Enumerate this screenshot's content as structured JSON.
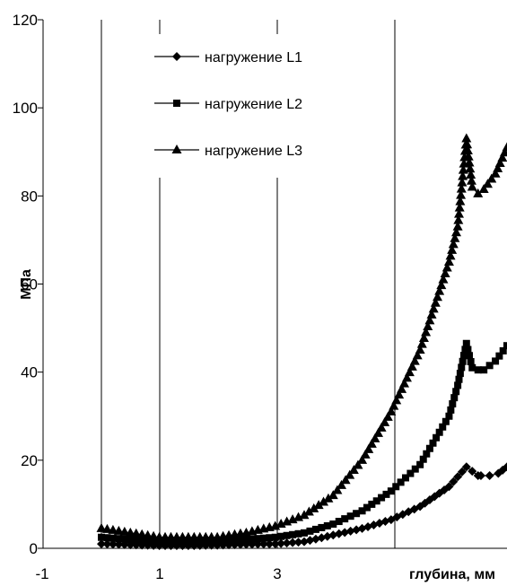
{
  "chart_data": {
    "type": "line",
    "xlabel": "глубина, мм",
    "ylabel": "МПа",
    "xlim": [
      -1,
      7
    ],
    "ylim": [
      0,
      120
    ],
    "x_ticks": [
      "-1",
      "1",
      "3"
    ],
    "y_ticks": [
      "0",
      "20",
      "40",
      "60",
      "80",
      "100",
      "120"
    ],
    "grid": "vertical",
    "legend_position": "top-left inside",
    "series": [
      {
        "name": "нагружение L1",
        "marker": "diamond",
        "x": [
          0.0,
          0.5,
          1.0,
          1.5,
          2.0,
          2.5,
          3.0,
          3.5,
          4.0,
          4.5,
          5.0,
          5.5,
          6.0,
          6.3,
          6.5,
          6.55,
          6.7,
          6.85,
          7.0
        ],
        "y": [
          1.0,
          0.8,
          0.6,
          0.6,
          0.7,
          0.9,
          1.0,
          1.5,
          3.0,
          4.5,
          6.5,
          9.5,
          14.0,
          18.5,
          16.5,
          16.5,
          16.5,
          17.0,
          18.5
        ]
      },
      {
        "name": "нагружение L2",
        "marker": "square",
        "x": [
          0.0,
          0.5,
          1.0,
          1.5,
          2.0,
          2.5,
          3.0,
          3.5,
          4.0,
          4.5,
          5.0,
          5.5,
          6.0,
          6.15,
          6.3,
          6.4,
          6.5,
          6.6,
          6.8,
          7.0
        ],
        "y": [
          2.5,
          2.0,
          1.5,
          1.5,
          1.5,
          2.0,
          2.5,
          3.5,
          5.5,
          8.5,
          13.0,
          19.0,
          30.0,
          37.0,
          46.5,
          41.0,
          40.5,
          40.5,
          42.5,
          46.0
        ]
      },
      {
        "name": "нагружение L3",
        "marker": "triangle",
        "x": [
          0.0,
          0.5,
          1.0,
          1.5,
          2.0,
          2.5,
          3.0,
          3.5,
          4.0,
          4.5,
          5.0,
          5.5,
          6.0,
          6.15,
          6.3,
          6.4,
          6.5,
          6.6,
          6.8,
          7.0
        ],
        "y": [
          4.5,
          3.5,
          2.5,
          2.5,
          2.5,
          3.5,
          5.0,
          7.5,
          12.0,
          20.0,
          31.0,
          45.0,
          65.0,
          73.0,
          93.0,
          82.0,
          80.5,
          81.5,
          85.0,
          91.0
        ]
      }
    ]
  }
}
